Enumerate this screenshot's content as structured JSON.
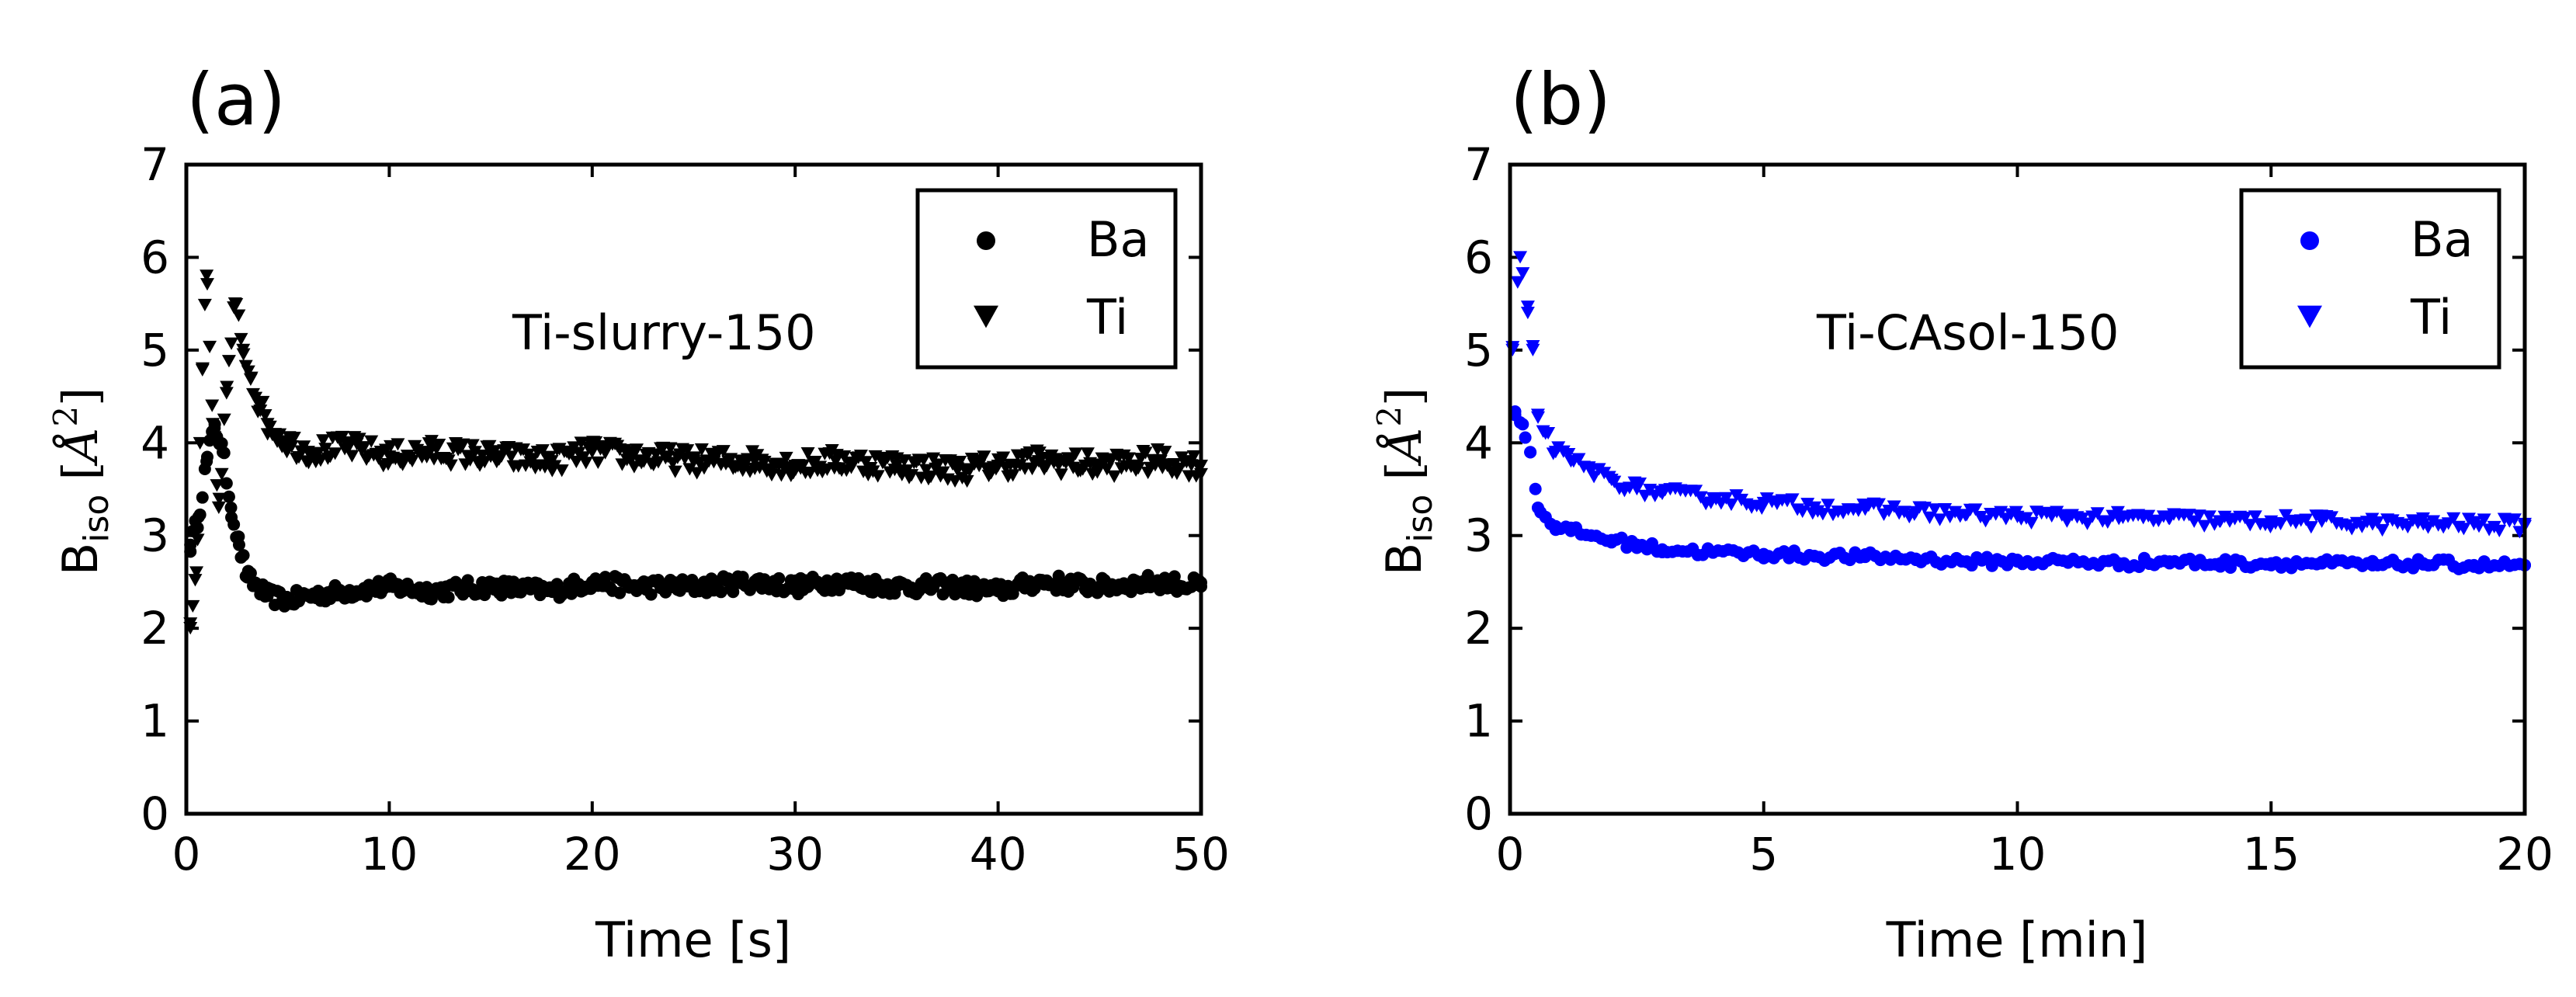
{
  "chart_data": [
    {
      "type": "scatter",
      "panel_label": "(a)",
      "annotation": "Ti-slurry-150",
      "xlabel": "Time [s]",
      "ylabel": {
        "main": "B",
        "sub": "iso",
        "unit_open": "[",
        "unit_symbol": "Å",
        "unit_exp": "2",
        "unit_close": "]"
      },
      "xlim": [
        0,
        50
      ],
      "ylim": [
        0,
        7
      ],
      "xticks": [
        0,
        10,
        20,
        30,
        40,
        50
      ],
      "yticks": [
        0,
        1,
        2,
        3,
        4,
        5,
        6,
        7
      ],
      "legend": {
        "position": "top-right",
        "entries": [
          "Ba",
          "Ti"
        ]
      },
      "color": "#000000",
      "series": [
        {
          "name": "Ba",
          "marker": "circle",
          "x": [
            0.2,
            0.6,
            1.0,
            1.4,
            1.8,
            2.2,
            2.6,
            3.0,
            4,
            5,
            6,
            8,
            10,
            12,
            15,
            18,
            20,
            22,
            25,
            28,
            30,
            32,
            35,
            38,
            40,
            42,
            45,
            48,
            50
          ],
          "y": [
            2.9,
            3.2,
            3.8,
            4.2,
            3.9,
            3.3,
            2.9,
            2.55,
            2.35,
            2.3,
            2.35,
            2.4,
            2.45,
            2.4,
            2.45,
            2.4,
            2.5,
            2.45,
            2.45,
            2.5,
            2.45,
            2.5,
            2.45,
            2.45,
            2.4,
            2.5,
            2.45,
            2.5,
            2.45
          ]
        },
        {
          "name": "Ti",
          "marker": "triangle-down",
          "x": [
            0.2,
            0.5,
            0.8,
            1.0,
            1.3,
            1.6,
            2.0,
            2.4,
            2.8,
            3.2,
            3.6,
            4,
            5,
            6,
            8,
            10,
            12,
            15,
            18,
            20,
            22,
            25,
            28,
            30,
            32,
            35,
            38,
            40,
            42,
            45,
            48,
            50
          ],
          "y": [
            2.0,
            2.6,
            4.8,
            5.8,
            4.2,
            3.3,
            4.6,
            5.5,
            5.0,
            4.7,
            4.4,
            4.2,
            4.0,
            3.9,
            3.95,
            3.85,
            3.9,
            3.85,
            3.8,
            3.9,
            3.85,
            3.8,
            3.8,
            3.75,
            3.8,
            3.75,
            3.7,
            3.75,
            3.8,
            3.75,
            3.8,
            3.75
          ]
        }
      ]
    },
    {
      "type": "scatter",
      "panel_label": "(b)",
      "annotation": "Ti-CAsol-150",
      "xlabel": "Time [min]",
      "ylabel": {
        "main": "B",
        "sub": "iso",
        "unit_open": "[",
        "unit_symbol": "Å",
        "unit_exp": "2",
        "unit_close": "]"
      },
      "xlim": [
        0,
        20
      ],
      "ylim": [
        0,
        7
      ],
      "xticks": [
        0,
        5,
        10,
        15,
        20
      ],
      "yticks": [
        0,
        1,
        2,
        3,
        4,
        5,
        6,
        7
      ],
      "legend": {
        "position": "top-right",
        "entries": [
          "Ba",
          "Ti"
        ]
      },
      "color": "#0000ff",
      "series": [
        {
          "name": "Ba",
          "marker": "circle",
          "x": [
            0.1,
            0.25,
            0.4,
            0.55,
            0.7,
            0.9,
            1.2,
            1.6,
            2,
            2.5,
            3,
            4,
            5,
            6,
            7,
            8,
            9,
            10,
            11,
            12,
            13,
            14,
            15,
            16,
            17,
            18,
            19,
            20
          ],
          "y": [
            4.3,
            4.2,
            3.9,
            3.3,
            3.2,
            3.1,
            3.05,
            3.0,
            2.95,
            2.9,
            2.85,
            2.82,
            2.8,
            2.78,
            2.77,
            2.75,
            2.72,
            2.72,
            2.72,
            2.7,
            2.72,
            2.7,
            2.7,
            2.7,
            2.68,
            2.7,
            2.68,
            2.68
          ]
        },
        {
          "name": "Ti",
          "marker": "triangle-down",
          "x": [
            0.05,
            0.2,
            0.35,
            0.45,
            0.55,
            0.7,
            0.9,
            1.2,
            1.6,
            2,
            2.5,
            3,
            4,
            5,
            6,
            7,
            8,
            9,
            10,
            11,
            12,
            13,
            14,
            15,
            16,
            17,
            18,
            19,
            20
          ],
          "y": [
            5.0,
            6.0,
            5.4,
            5.0,
            4.3,
            4.1,
            3.9,
            3.8,
            3.7,
            3.6,
            3.5,
            3.45,
            3.4,
            3.35,
            3.3,
            3.28,
            3.25,
            3.22,
            3.2,
            3.2,
            3.18,
            3.18,
            3.15,
            3.15,
            3.15,
            3.12,
            3.12,
            3.12,
            3.1
          ]
        }
      ]
    }
  ]
}
